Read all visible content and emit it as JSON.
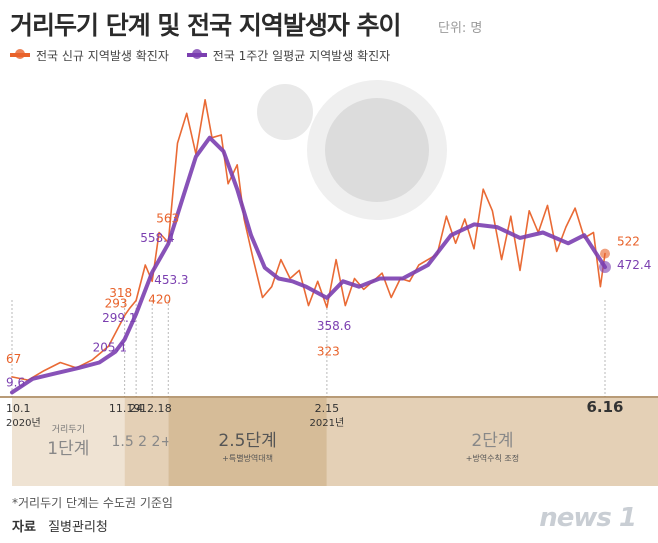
{
  "header": {
    "title": "거리두기 단계 및 전국 지역발생자 추이",
    "unit": "단위: 명"
  },
  "legend": {
    "daily_label": "전국 신규 지역발생 확진자",
    "weekly_label": "전국 1주간 일평균 지역발생 확진자"
  },
  "colors": {
    "daily": "#e8622a",
    "weekly": "#7b3fb0",
    "stage_light": "#efe3d3",
    "stage_mid": "#e4d0b6",
    "stage_dark": "#d6bc98",
    "axis_line": "#a07a4a"
  },
  "chart_data": {
    "type": "line",
    "x_start_date": "2020-10-01",
    "x_end_date": "2021-06-16",
    "ylim": [
      0,
      1200
    ],
    "series": [
      {
        "name": "전국 신규 지역발생 확진자",
        "points": [
          [
            "2020-10-01",
            67
          ],
          [
            "2020-10-08",
            55
          ],
          [
            "2020-10-15",
            90
          ],
          [
            "2020-10-22",
            120
          ],
          [
            "2020-10-29",
            100
          ],
          [
            "2020-11-05",
            130
          ],
          [
            "2020-11-12",
            180
          ],
          [
            "2020-11-19",
            293
          ],
          [
            "2020-11-21",
            318
          ],
          [
            "2020-11-24",
            349
          ],
          [
            "2020-11-28",
            480
          ],
          [
            "2020-12-01",
            420
          ],
          [
            "2020-12-04",
            600
          ],
          [
            "2020-12-08",
            563
          ],
          [
            "2020-12-12",
            930
          ],
          [
            "2020-12-16",
            1040
          ],
          [
            "2020-12-20",
            890
          ],
          [
            "2020-12-24",
            1090
          ],
          [
            "2020-12-27",
            950
          ],
          [
            "2020-12-31",
            960
          ],
          [
            "2021-01-03",
            780
          ],
          [
            "2021-01-07",
            850
          ],
          [
            "2021-01-10",
            650
          ],
          [
            "2021-01-14",
            500
          ],
          [
            "2021-01-18",
            360
          ],
          [
            "2021-01-22",
            400
          ],
          [
            "2021-01-26",
            500
          ],
          [
            "2021-01-30",
            430
          ],
          [
            "2021-02-03",
            460
          ],
          [
            "2021-02-07",
            330
          ],
          [
            "2021-02-11",
            420
          ],
          [
            "2021-02-15",
            323
          ],
          [
            "2021-02-19",
            500
          ],
          [
            "2021-02-23",
            330
          ],
          [
            "2021-02-27",
            430
          ],
          [
            "2021-03-03",
            390
          ],
          [
            "2021-03-07",
            420
          ],
          [
            "2021-03-11",
            450
          ],
          [
            "2021-03-15",
            360
          ],
          [
            "2021-03-19",
            430
          ],
          [
            "2021-03-23",
            420
          ],
          [
            "2021-03-27",
            480
          ],
          [
            "2021-03-31",
            500
          ],
          [
            "2021-04-04",
            520
          ],
          [
            "2021-04-08",
            660
          ],
          [
            "2021-04-12",
            560
          ],
          [
            "2021-04-16",
            650
          ],
          [
            "2021-04-20",
            540
          ],
          [
            "2021-04-24",
            760
          ],
          [
            "2021-04-28",
            680
          ],
          [
            "2021-05-02",
            500
          ],
          [
            "2021-05-06",
            660
          ],
          [
            "2021-05-10",
            460
          ],
          [
            "2021-05-14",
            680
          ],
          [
            "2021-05-18",
            600
          ],
          [
            "2021-05-22",
            700
          ],
          [
            "2021-05-26",
            530
          ],
          [
            "2021-05-30",
            620
          ],
          [
            "2021-06-03",
            690
          ],
          [
            "2021-06-07",
            580
          ],
          [
            "2021-06-11",
            600
          ],
          [
            "2021-06-14",
            400
          ],
          [
            "2021-06-16",
            522
          ]
        ]
      },
      {
        "name": "전국 1주간 일평균 지역발생 확진자",
        "points": [
          [
            "2020-10-01",
            9.6
          ],
          [
            "2020-10-10",
            60
          ],
          [
            "2020-10-20",
            80
          ],
          [
            "2020-10-30",
            100
          ],
          [
            "2020-11-08",
            120
          ],
          [
            "2020-11-15",
            160
          ],
          [
            "2020-11-19",
            205.1
          ],
          [
            "2020-11-24",
            299.1
          ],
          [
            "2020-12-01",
            453.3
          ],
          [
            "2020-12-08",
            558.4
          ],
          [
            "2020-12-14",
            720
          ],
          [
            "2020-12-20",
            880
          ],
          [
            "2020-12-26",
            950
          ],
          [
            "2021-01-01",
            900
          ],
          [
            "2021-01-07",
            760
          ],
          [
            "2021-01-13",
            590
          ],
          [
            "2021-01-19",
            470
          ],
          [
            "2021-01-25",
            430
          ],
          [
            "2021-01-31",
            420
          ],
          [
            "2021-02-06",
            400
          ],
          [
            "2021-02-15",
            358.6
          ],
          [
            "2021-02-22",
            420
          ],
          [
            "2021-03-01",
            400
          ],
          [
            "2021-03-10",
            430
          ],
          [
            "2021-03-20",
            430
          ],
          [
            "2021-03-31",
            480
          ],
          [
            "2021-04-10",
            590
          ],
          [
            "2021-04-20",
            630
          ],
          [
            "2021-04-30",
            620
          ],
          [
            "2021-05-10",
            580
          ],
          [
            "2021-05-20",
            600
          ],
          [
            "2021-05-31",
            560
          ],
          [
            "2021-06-07",
            590
          ],
          [
            "2021-06-16",
            472.4
          ]
        ]
      }
    ],
    "annotations_daily": [
      {
        "date": "2020-10-01",
        "value": "67"
      },
      {
        "date": "2020-11-19",
        "value": "293"
      },
      {
        "date": "2020-11-21",
        "value": "318"
      },
      {
        "date": "2020-12-01",
        "value": "420"
      },
      {
        "date": "2020-12-08",
        "value": "563"
      },
      {
        "date": "2021-02-15",
        "value": "323"
      },
      {
        "date": "2021-06-16",
        "value": "522"
      }
    ],
    "annotations_weekly": [
      {
        "date": "2020-10-01",
        "value": "9.6"
      },
      {
        "date": "2020-11-19",
        "value": "205.1"
      },
      {
        "date": "2020-11-24",
        "value": "299.1"
      },
      {
        "date": "2020-12-01",
        "value": "453.3"
      },
      {
        "date": "2020-12-08",
        "value": "558.4"
      },
      {
        "date": "2021-02-15",
        "value": "358.6"
      },
      {
        "date": "2021-06-16",
        "value": "472.4"
      }
    ],
    "x_ticks": [
      {
        "date": "2020-10-01",
        "label": "10.1",
        "sub": "2020년"
      },
      {
        "date": "2020-11-19",
        "label": "11.19",
        "sub": ""
      },
      {
        "date": "2020-11-24",
        "label": "24",
        "sub": ""
      },
      {
        "date": "2020-12-01",
        "label": "12.1",
        "sub": ""
      },
      {
        "date": "2020-12-08",
        "label": "8",
        "sub": ""
      },
      {
        "date": "2021-02-15",
        "label": "2.15",
        "sub": "2021년"
      },
      {
        "date": "2021-06-16",
        "label": "6.16",
        "sub": ""
      }
    ],
    "stages": [
      {
        "from": "2020-10-01",
        "to": "2020-11-19",
        "prefix": "거리두기",
        "label": "1단계",
        "note": "",
        "shade": "light"
      },
      {
        "from": "2020-11-19",
        "to": "2020-12-08",
        "prefix": "",
        "label": "1.5 2 2+α",
        "note": "",
        "shade": "mid"
      },
      {
        "from": "2020-12-08",
        "to": "2021-02-15",
        "prefix": "",
        "label": "2.5단계",
        "note": "+특별방역대책",
        "shade": "dark"
      },
      {
        "from": "2021-02-15",
        "to": "2021-06-30",
        "prefix": "",
        "label": "2단계",
        "note": "+방역수칙 조정",
        "shade": "mid"
      }
    ]
  },
  "footer": {
    "footnote": "*거리두기 단계는 수도권 기준임",
    "source_label": "자료",
    "source_value": "질병관리청",
    "logo": "news 1"
  }
}
